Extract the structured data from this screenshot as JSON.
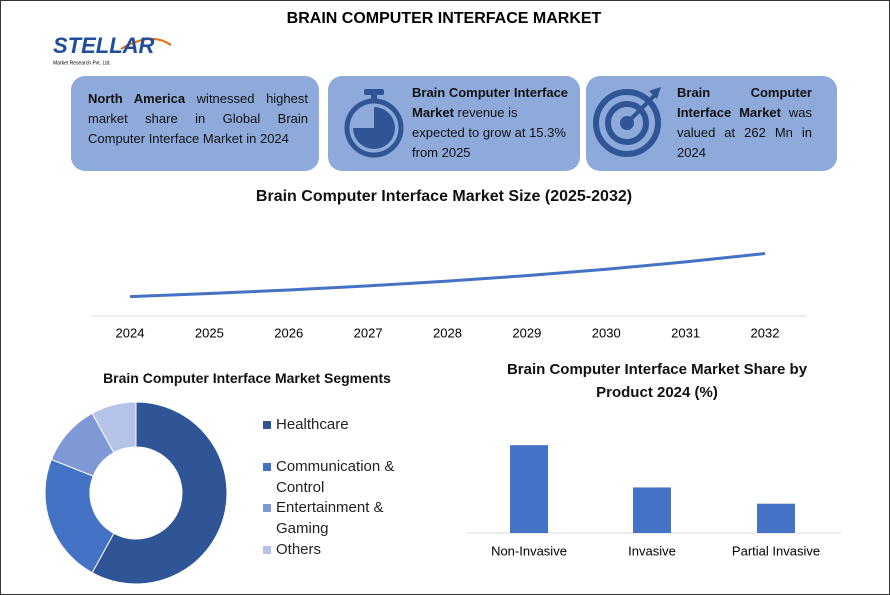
{
  "header": {
    "title": "BRAIN COMPUTER INTERFACE MARKET",
    "logo": {
      "name": "STELLAR",
      "tagline": "Market Research Pvt. Ltd."
    }
  },
  "cards": [
    {
      "bold": "North America",
      "text": " witnessed highest market share in Global Brain Computer Interface Market in 2024"
    },
    {
      "bold": "Brain Computer Interface Market",
      "text": " revenue is expected to grow at 15.3% from 2025"
    },
    {
      "bold": "Brain Computer Interface Market",
      "text": " was valued at 262 Mn in 2024"
    }
  ],
  "chart_data": [
    {
      "type": "line",
      "title": "Brain Computer Interface Market Size (2025-2032)",
      "x": [
        2024,
        2025,
        2026,
        2027,
        2028,
        2029,
        2030,
        2031,
        2032
      ],
      "values": [
        262,
        302,
        348,
        401,
        462,
        533,
        615,
        709,
        817
      ],
      "color": "#4472c4",
      "ylim": [
        0,
        1300
      ]
    },
    {
      "type": "donut",
      "title": "Brain Computer Interface Market Segments",
      "categories": [
        "Healthcare",
        "Communication & Control",
        "Entertainment & Gaming",
        "Others"
      ],
      "values": [
        58,
        23,
        11,
        8
      ],
      "colors": [
        "#2f5597",
        "#4472c4",
        "#7f98d6",
        "#b4c3e7"
      ]
    },
    {
      "type": "bar",
      "title": "Brain Computer Interface Market Share by Product 2024 (%)",
      "categories": [
        "Non-Invasive",
        "Invasive",
        "Partial Invasive"
      ],
      "values": [
        54,
        28,
        18
      ],
      "color": "#4472c4",
      "ylim": [
        0,
        75
      ]
    }
  ]
}
